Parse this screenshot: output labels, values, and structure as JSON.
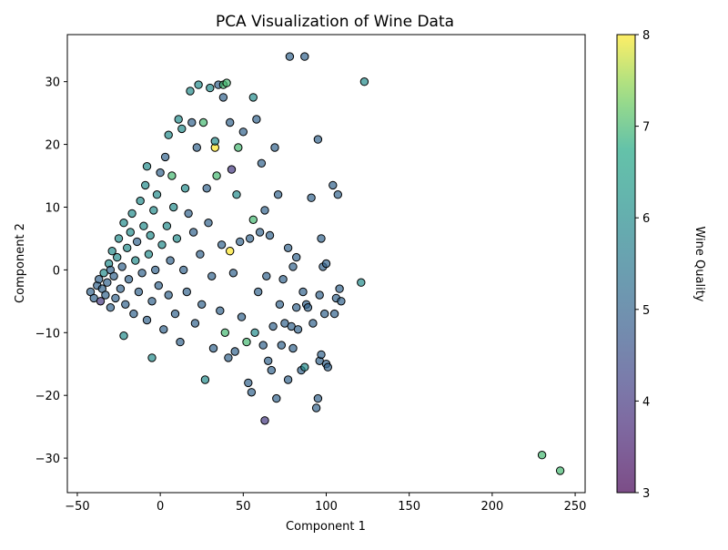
{
  "chart_data": {
    "type": "scatter",
    "title": "PCA Visualization of Wine Data",
    "xlabel": "Component 1",
    "ylabel": "Component 2",
    "xlim": [
      -56,
      256
    ],
    "ylim": [
      -35.5,
      37.5
    ],
    "xticks": [
      -50,
      0,
      50,
      100,
      150,
      200,
      250
    ],
    "yticks": [
      -30,
      -20,
      -10,
      0,
      10,
      20,
      30
    ],
    "grid": false,
    "colormap": "viridis",
    "colorbar": {
      "label": "Wine Quality",
      "range": [
        3,
        8
      ],
      "ticks": [
        3,
        4,
        5,
        6,
        7,
        8
      ]
    },
    "marker_edge_color": "#000000",
    "points": [
      {
        "x": -42,
        "y": -3.5,
        "q": 5
      },
      {
        "x": -40,
        "y": -4.5,
        "q": 5
      },
      {
        "x": -38,
        "y": -2.5,
        "q": 5
      },
      {
        "x": -37,
        "y": -1.5,
        "q": 5
      },
      {
        "x": -36,
        "y": -5,
        "q": 4
      },
      {
        "x": -35,
        "y": -3,
        "q": 5
      },
      {
        "x": -34,
        "y": -0.5,
        "q": 6
      },
      {
        "x": -33,
        "y": -4,
        "q": 5
      },
      {
        "x": -32,
        "y": -2,
        "q": 5
      },
      {
        "x": -31,
        "y": 1,
        "q": 6
      },
      {
        "x": -30,
        "y": -6,
        "q": 5
      },
      {
        "x": -30,
        "y": 0,
        "q": 5
      },
      {
        "x": -29,
        "y": 3,
        "q": 6
      },
      {
        "x": -28,
        "y": -1,
        "q": 5
      },
      {
        "x": -27,
        "y": -4.5,
        "q": 5
      },
      {
        "x": -26,
        "y": 2,
        "q": 6
      },
      {
        "x": -25,
        "y": 5,
        "q": 6
      },
      {
        "x": -24,
        "y": -3,
        "q": 5
      },
      {
        "x": -23,
        "y": 0.5,
        "q": 5
      },
      {
        "x": -22,
        "y": 7.5,
        "q": 6
      },
      {
        "x": -22,
        "y": -10.5,
        "q": 6
      },
      {
        "x": -21,
        "y": -5.5,
        "q": 5
      },
      {
        "x": -20,
        "y": 3.5,
        "q": 6
      },
      {
        "x": -19,
        "y": -1.5,
        "q": 5
      },
      {
        "x": -18,
        "y": 6,
        "q": 6
      },
      {
        "x": -17,
        "y": 9,
        "q": 6
      },
      {
        "x": -16,
        "y": -7,
        "q": 5
      },
      {
        "x": -15,
        "y": 1.5,
        "q": 6
      },
      {
        "x": -14,
        "y": 4.5,
        "q": 5
      },
      {
        "x": -13,
        "y": -3.5,
        "q": 5
      },
      {
        "x": -12,
        "y": 11,
        "q": 6
      },
      {
        "x": -11,
        "y": -0.5,
        "q": 5
      },
      {
        "x": -10,
        "y": 7,
        "q": 6
      },
      {
        "x": -9,
        "y": 13.5,
        "q": 6
      },
      {
        "x": -8,
        "y": -8,
        "q": 5
      },
      {
        "x": -8,
        "y": 16.5,
        "q": 6
      },
      {
        "x": -7,
        "y": 2.5,
        "q": 6
      },
      {
        "x": -6,
        "y": 5.5,
        "q": 6
      },
      {
        "x": -5,
        "y": -14,
        "q": 6
      },
      {
        "x": -5,
        "y": -5,
        "q": 5
      },
      {
        "x": -4,
        "y": 9.5,
        "q": 6
      },
      {
        "x": -3,
        "y": 0,
        "q": 5
      },
      {
        "x": -2,
        "y": 12,
        "q": 6
      },
      {
        "x": -1,
        "y": -2.5,
        "q": 5
      },
      {
        "x": 0,
        "y": 15.5,
        "q": 5
      },
      {
        "x": 1,
        "y": 4,
        "q": 6
      },
      {
        "x": 2,
        "y": -9.5,
        "q": 5
      },
      {
        "x": 3,
        "y": 18,
        "q": 5
      },
      {
        "x": 4,
        "y": 7,
        "q": 6
      },
      {
        "x": 5,
        "y": 21.5,
        "q": 6
      },
      {
        "x": 5,
        "y": -4,
        "q": 5
      },
      {
        "x": 6,
        "y": 1.5,
        "q": 5
      },
      {
        "x": 7,
        "y": 15,
        "q": 7
      },
      {
        "x": 8,
        "y": 10,
        "q": 6
      },
      {
        "x": 9,
        "y": -7,
        "q": 5
      },
      {
        "x": 10,
        "y": 5,
        "q": 6
      },
      {
        "x": 11,
        "y": 24,
        "q": 6
      },
      {
        "x": 12,
        "y": -11.5,
        "q": 5
      },
      {
        "x": 13,
        "y": 22.5,
        "q": 6
      },
      {
        "x": 14,
        "y": 0,
        "q": 5
      },
      {
        "x": 15,
        "y": 13,
        "q": 6
      },
      {
        "x": 16,
        "y": -3.5,
        "q": 5
      },
      {
        "x": 17,
        "y": 9,
        "q": 5
      },
      {
        "x": 18,
        "y": 28.5,
        "q": 6
      },
      {
        "x": 19,
        "y": 23.5,
        "q": 5
      },
      {
        "x": 20,
        "y": 6,
        "q": 5
      },
      {
        "x": 21,
        "y": -8.5,
        "q": 5
      },
      {
        "x": 22,
        "y": 19.5,
        "q": 5
      },
      {
        "x": 23,
        "y": 29.5,
        "q": 6
      },
      {
        "x": 24,
        "y": 2.5,
        "q": 5
      },
      {
        "x": 25,
        "y": -5.5,
        "q": 5
      },
      {
        "x": 26,
        "y": 23.5,
        "q": 7
      },
      {
        "x": 27,
        "y": -17.5,
        "q": 6
      },
      {
        "x": 28,
        "y": 13,
        "q": 5
      },
      {
        "x": 29,
        "y": 7.5,
        "q": 5
      },
      {
        "x": 30,
        "y": 29,
        "q": 6
      },
      {
        "x": 31,
        "y": -1,
        "q": 5
      },
      {
        "x": 32,
        "y": -12.5,
        "q": 5
      },
      {
        "x": 33,
        "y": 19.5,
        "q": 8
      },
      {
        "x": 33,
        "y": 20.5,
        "q": 6
      },
      {
        "x": 34,
        "y": 15,
        "q": 7
      },
      {
        "x": 35,
        "y": 29.5,
        "q": 5
      },
      {
        "x": 36,
        "y": -6.5,
        "q": 5
      },
      {
        "x": 37,
        "y": 4,
        "q": 5
      },
      {
        "x": 38,
        "y": 27.5,
        "q": 5
      },
      {
        "x": 38,
        "y": 29.5,
        "q": 7
      },
      {
        "x": 39,
        "y": -10,
        "q": 7
      },
      {
        "x": 40,
        "y": 29.8,
        "q": 7
      },
      {
        "x": 41,
        "y": -14,
        "q": 5
      },
      {
        "x": 42,
        "y": 23.5,
        "q": 5
      },
      {
        "x": 42,
        "y": 3,
        "q": 8
      },
      {
        "x": 43,
        "y": 16,
        "q": 4
      },
      {
        "x": 44,
        "y": -0.5,
        "q": 5
      },
      {
        "x": 45,
        "y": -13,
        "q": 5
      },
      {
        "x": 46,
        "y": 12,
        "q": 6
      },
      {
        "x": 47,
        "y": 19.5,
        "q": 7
      },
      {
        "x": 48,
        "y": 4.5,
        "q": 5
      },
      {
        "x": 49,
        "y": -7.5,
        "q": 5
      },
      {
        "x": 50,
        "y": 22,
        "q": 5
      },
      {
        "x": 52,
        "y": -11.5,
        "q": 7
      },
      {
        "x": 53,
        "y": -18,
        "q": 5
      },
      {
        "x": 54,
        "y": 5,
        "q": 5
      },
      {
        "x": 55,
        "y": -19.5,
        "q": 5
      },
      {
        "x": 56,
        "y": 8,
        "q": 7
      },
      {
        "x": 56,
        "y": 27.5,
        "q": 6
      },
      {
        "x": 57,
        "y": -10,
        "q": 6
      },
      {
        "x": 58,
        "y": 24,
        "q": 5
      },
      {
        "x": 59,
        "y": -3.5,
        "q": 5
      },
      {
        "x": 60,
        "y": 6,
        "q": 5
      },
      {
        "x": 61,
        "y": 17,
        "q": 5
      },
      {
        "x": 62,
        "y": -12,
        "q": 5
      },
      {
        "x": 63,
        "y": 9.5,
        "q": 5
      },
      {
        "x": 63,
        "y": -24,
        "q": 4
      },
      {
        "x": 64,
        "y": -1,
        "q": 5
      },
      {
        "x": 65,
        "y": -14.5,
        "q": 5
      },
      {
        "x": 66,
        "y": 5.5,
        "q": 5
      },
      {
        "x": 67,
        "y": -16,
        "q": 5
      },
      {
        "x": 68,
        "y": -9,
        "q": 5
      },
      {
        "x": 69,
        "y": 19.5,
        "q": 5
      },
      {
        "x": 70,
        "y": -20.5,
        "q": 5
      },
      {
        "x": 71,
        "y": 12,
        "q": 5
      },
      {
        "x": 72,
        "y": -5.5,
        "q": 5
      },
      {
        "x": 73,
        "y": -12,
        "q": 5
      },
      {
        "x": 74,
        "y": -1.5,
        "q": 5
      },
      {
        "x": 75,
        "y": -8.5,
        "q": 5
      },
      {
        "x": 77,
        "y": 3.5,
        "q": 5
      },
      {
        "x": 77,
        "y": -17.5,
        "q": 5
      },
      {
        "x": 78,
        "y": 34,
        "q": 5
      },
      {
        "x": 79,
        "y": -9,
        "q": 5
      },
      {
        "x": 80,
        "y": 0.5,
        "q": 5
      },
      {
        "x": 80,
        "y": -12.5,
        "q": 5
      },
      {
        "x": 82,
        "y": 2,
        "q": 5
      },
      {
        "x": 82,
        "y": -6,
        "q": 5
      },
      {
        "x": 83,
        "y": -9.5,
        "q": 5
      },
      {
        "x": 85,
        "y": -16,
        "q": 5
      },
      {
        "x": 86,
        "y": -3.5,
        "q": 5
      },
      {
        "x": 87,
        "y": 34,
        "q": 5
      },
      {
        "x": 87,
        "y": -15.5,
        "q": 6
      },
      {
        "x": 88,
        "y": -5.5,
        "q": 5
      },
      {
        "x": 89,
        "y": -6,
        "q": 5
      },
      {
        "x": 91,
        "y": 11.5,
        "q": 5
      },
      {
        "x": 92,
        "y": -8.5,
        "q": 5
      },
      {
        "x": 94,
        "y": -22,
        "q": 5
      },
      {
        "x": 95,
        "y": -20.5,
        "q": 5
      },
      {
        "x": 95,
        "y": 20.8,
        "q": 5
      },
      {
        "x": 96,
        "y": -4,
        "q": 5
      },
      {
        "x": 96,
        "y": -14.5,
        "q": 5
      },
      {
        "x": 97,
        "y": 5,
        "q": 5
      },
      {
        "x": 97,
        "y": -13.5,
        "q": 5
      },
      {
        "x": 98,
        "y": 0.5,
        "q": 5
      },
      {
        "x": 99,
        "y": -7,
        "q": 5
      },
      {
        "x": 100,
        "y": -15,
        "q": 5
      },
      {
        "x": 100,
        "y": 1,
        "q": 5
      },
      {
        "x": 101,
        "y": -15.5,
        "q": 5
      },
      {
        "x": 104,
        "y": 13.5,
        "q": 5
      },
      {
        "x": 105,
        "y": -7,
        "q": 5
      },
      {
        "x": 106,
        "y": -4.5,
        "q": 5
      },
      {
        "x": 107,
        "y": 12,
        "q": 5
      },
      {
        "x": 108,
        "y": -3,
        "q": 5
      },
      {
        "x": 109,
        "y": -5,
        "q": 5
      },
      {
        "x": 121,
        "y": -2,
        "q": 6
      },
      {
        "x": 123,
        "y": 30,
        "q": 6
      },
      {
        "x": 230,
        "y": -29.5,
        "q": 7
      },
      {
        "x": 241,
        "y": -32,
        "q": 7
      }
    ]
  }
}
